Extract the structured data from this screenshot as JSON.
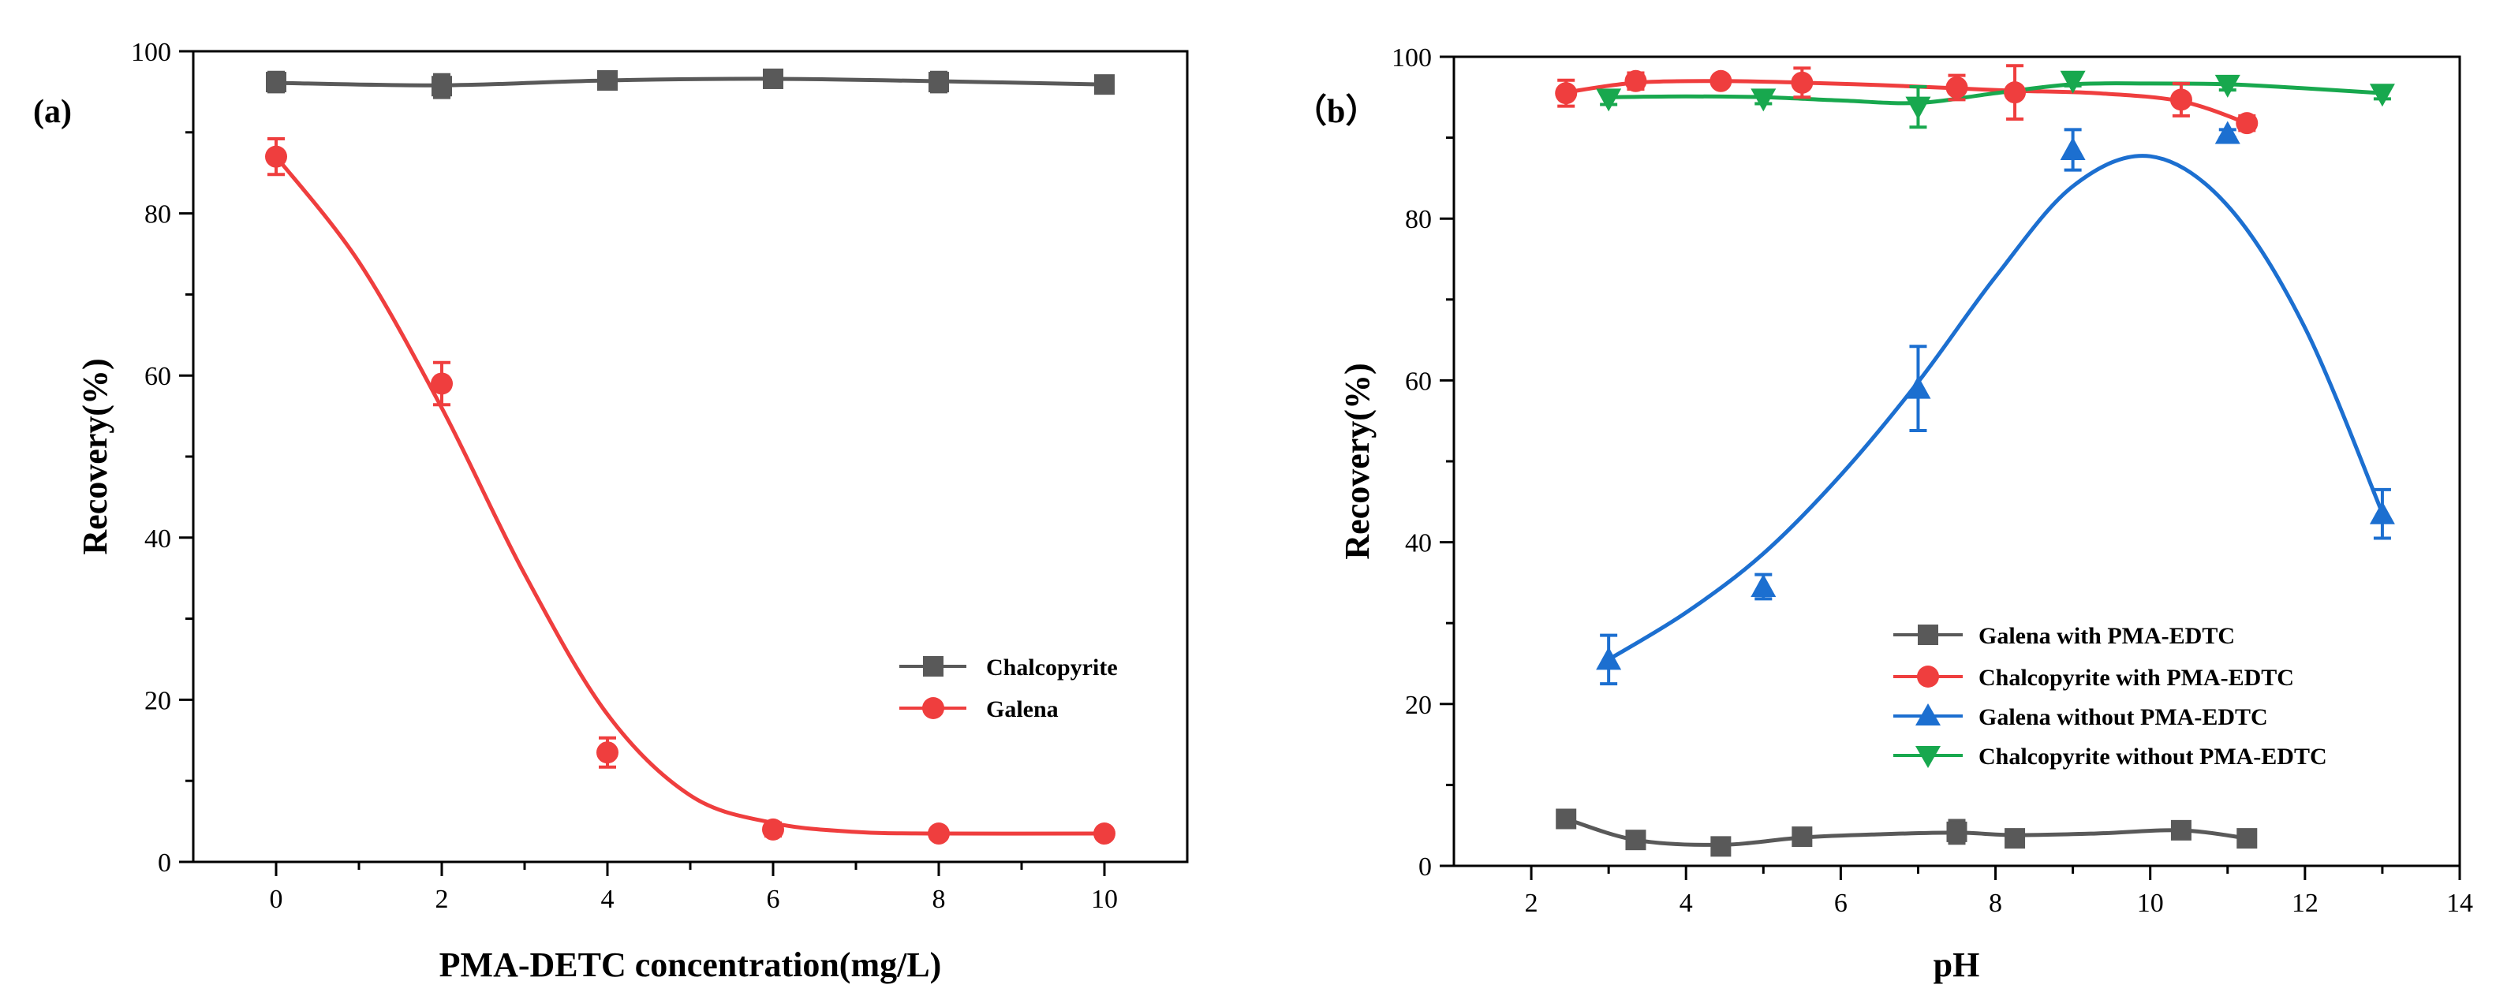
{
  "chart_data": [
    {
      "type": "line",
      "panel_label": "(a)",
      "xlabel": "PMA-DETC concentration(mg/L)",
      "ylabel": "Recovery(%)",
      "xlim": [
        -1,
        11
      ],
      "ylim": [
        0,
        100
      ],
      "xticks": [
        0,
        2,
        4,
        6,
        8,
        10
      ],
      "yticks": [
        0,
        20,
        40,
        60,
        80,
        100
      ],
      "legend_position": "lower-right",
      "series": [
        {
          "name": "Chalcopyrite",
          "color": "#595959",
          "marker": "square",
          "x": [
            0,
            2,
            4,
            6,
            8,
            10
          ],
          "y": [
            96.2,
            95.7,
            96.4,
            96.6,
            96.2,
            95.9
          ],
          "err": [
            1.2,
            1.4,
            0.8,
            0.7,
            1.2,
            0.5
          ],
          "curve": [
            [
              0,
              96.1
            ],
            [
              2,
              95.8
            ],
            [
              4,
              96.4
            ],
            [
              6,
              96.6
            ],
            [
              8,
              96.3
            ],
            [
              10,
              95.9
            ]
          ]
        },
        {
          "name": "Galena",
          "color": "#ef3e3e",
          "marker": "circle",
          "x": [
            0,
            2,
            4,
            6,
            8,
            10
          ],
          "y": [
            87,
            59,
            13.5,
            4,
            3.5,
            3.5
          ],
          "err": [
            2.2,
            2.6,
            1.8,
            0.8,
            0.5,
            0.5
          ],
          "curve": [
            [
              0,
              87
            ],
            [
              1,
              74
            ],
            [
              2,
              56
            ],
            [
              3,
              35.5
            ],
            [
              4,
              18.2
            ],
            [
              5,
              8.2
            ],
            [
              6,
              4.8
            ],
            [
              7,
              3.7
            ],
            [
              8,
              3.5
            ],
            [
              10,
              3.5
            ]
          ]
        }
      ]
    },
    {
      "type": "line",
      "panel_label": "（b）",
      "xlabel": "pH",
      "ylabel": "Recovery(%)",
      "xlim": [
        1,
        14
      ],
      "ylim": [
        0,
        100
      ],
      "xticks": [
        2,
        4,
        6,
        8,
        10,
        12,
        14
      ],
      "yticks": [
        0,
        20,
        40,
        60,
        80,
        100
      ],
      "legend_position": "lower-right",
      "series": [
        {
          "name": "Galena with PMA-EDTC",
          "color": "#595959",
          "marker": "square",
          "x": [
            2.45,
            3.35,
            4.45,
            5.5,
            7.5,
            8.25,
            10.4,
            11.25
          ],
          "y": [
            5.8,
            3.2,
            2.4,
            3.6,
            4.2,
            3.4,
            4.4,
            3.4
          ],
          "err": [
            0.6,
            0.6,
            0.8,
            0.4,
            1.4,
            0.7,
            0.5,
            0.4
          ],
          "curve": [
            [
              2.45,
              5.8
            ],
            [
              3.35,
              3.2
            ],
            [
              4.45,
              2.6
            ],
            [
              5.5,
              3.5
            ],
            [
              6.5,
              3.9
            ],
            [
              7.5,
              4.1
            ],
            [
              8.25,
              3.8
            ],
            [
              9.3,
              4
            ],
            [
              10.4,
              4.4
            ],
            [
              11.25,
              3.4
            ]
          ]
        },
        {
          "name": "Chalcopyrite with PMA-EDTC",
          "color": "#ef3e3e",
          "marker": "circle",
          "x": [
            2.45,
            3.35,
            4.45,
            5.5,
            7.5,
            8.25,
            10.4,
            11.25
          ],
          "y": [
            95.5,
            97,
            97,
            96.8,
            96.2,
            95.6,
            94.7,
            91.8
          ],
          "err": [
            1.6,
            1,
            0.6,
            1.8,
            1.5,
            3.3,
            2,
            0.9
          ],
          "curve": [
            [
              2.45,
              95.6
            ],
            [
              3.35,
              96.8
            ],
            [
              4.45,
              97
            ],
            [
              5.5,
              96.8
            ],
            [
              6.5,
              96.5
            ],
            [
              7.5,
              96.1
            ],
            [
              8.25,
              95.8
            ],
            [
              9.3,
              95.5
            ],
            [
              10.4,
              94.5
            ],
            [
              11.25,
              91.8
            ]
          ]
        },
        {
          "name": "Galena without PMA-EDTC",
          "color": "#1c6fd0",
          "marker": "triangle-up",
          "x": [
            3,
            5,
            7,
            9,
            11,
            13
          ],
          "y": [
            25.5,
            34.5,
            59,
            88.5,
            90.5,
            43.5
          ],
          "err": [
            3,
            1.5,
            5.2,
            2.5,
            0.5,
            3
          ],
          "curve": [
            [
              3,
              25.5
            ],
            [
              4,
              31.3
            ],
            [
              5,
              38.6
            ],
            [
              6,
              48.3
            ],
            [
              7,
              59.8
            ],
            [
              8,
              72.8
            ],
            [
              9,
              84
            ],
            [
              10,
              87.7
            ],
            [
              11,
              81.6
            ],
            [
              12,
              66.5
            ],
            [
              13,
              43.6
            ]
          ]
        },
        {
          "name": "Chalcopyrite without PMA-EDTC",
          "color": "#18a84e",
          "marker": "triangle-down",
          "x": [
            3,
            5,
            7,
            9,
            11,
            13
          ],
          "y": [
            94.8,
            94.8,
            93.8,
            97,
            96.5,
            95.4
          ],
          "err": [
            0.7,
            0.6,
            2.5,
            0.6,
            0.6,
            0.6
          ],
          "curve": [
            [
              3,
              95
            ],
            [
              4,
              95.1
            ],
            [
              5,
              95
            ],
            [
              6,
              94.6
            ],
            [
              7,
              94.3
            ],
            [
              8,
              95.5
            ],
            [
              9,
              96.6
            ],
            [
              10,
              96.7
            ],
            [
              11,
              96.6
            ],
            [
              12,
              96.1
            ],
            [
              13,
              95.5
            ]
          ]
        }
      ]
    }
  ]
}
